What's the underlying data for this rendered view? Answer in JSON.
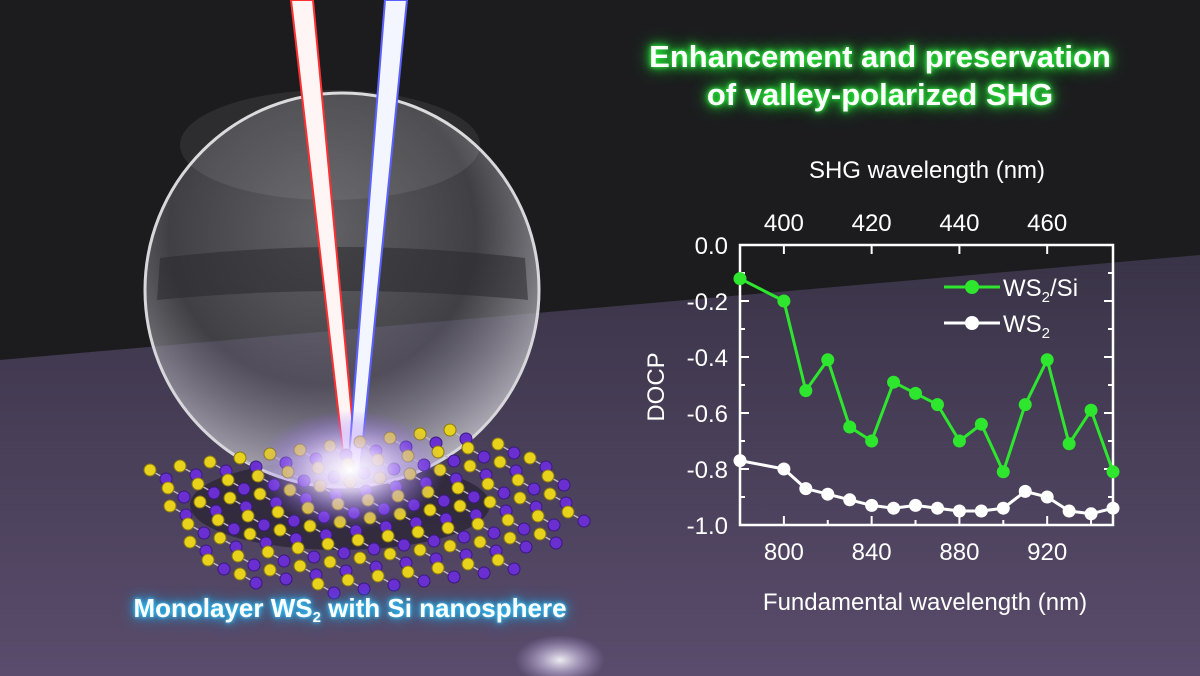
{
  "headline": {
    "line1": "Enhancement and preservation",
    "line2": "of valley-polarized SHG"
  },
  "caption": {
    "prefix": "Monolayer WS",
    "subscript": "2",
    "suffix": " with Si nanosphere"
  },
  "colors": {
    "background": "#1c1c1f",
    "series_ws2_si": "#2ee62e",
    "series_ws2": "#ffffff",
    "headline_glow": "#27ff3a",
    "caption_glow": "#24c8ff"
  },
  "chart_data": {
    "type": "line",
    "xlabel": "Fundamental wavelength (nm)",
    "ylabel": "DOCP",
    "top_xlabel": "SHG wavelength (nm)",
    "xlim": [
      780,
      950
    ],
    "ylim": [
      -1.0,
      0.0
    ],
    "xticks": [
      800,
      840,
      880,
      920
    ],
    "yticks": [
      0.0,
      -0.2,
      -0.4,
      -0.6,
      -0.8,
      -1.0
    ],
    "ytick_labels": [
      "0.0",
      "-0.2",
      "-0.4",
      "-0.6",
      "-0.8",
      "-1.0"
    ],
    "top_xticks": [
      400,
      420,
      440,
      460
    ],
    "legend_position": "top-right",
    "series": [
      {
        "name_main": "WS",
        "name_sub": "2",
        "name_suffix": "/Si",
        "color": "#2ee62e",
        "x": [
          780,
          800,
          810,
          820,
          830,
          840,
          850,
          860,
          870,
          880,
          890,
          900,
          910,
          920,
          930,
          940,
          950
        ],
        "y": [
          -0.12,
          -0.2,
          -0.52,
          -0.41,
          -0.65,
          -0.7,
          -0.49,
          -0.53,
          -0.57,
          -0.7,
          -0.64,
          -0.81,
          -0.57,
          -0.41,
          -0.71,
          -0.59,
          -0.81
        ]
      },
      {
        "name_main": "WS",
        "name_sub": "2",
        "name_suffix": "",
        "color": "#ffffff",
        "x": [
          780,
          800,
          810,
          820,
          830,
          840,
          850,
          860,
          870,
          880,
          890,
          900,
          910,
          920,
          930,
          940,
          950
        ],
        "y": [
          -0.77,
          -0.8,
          -0.87,
          -0.89,
          -0.91,
          -0.93,
          -0.94,
          -0.93,
          -0.94,
          -0.95,
          -0.95,
          -0.94,
          -0.88,
          -0.9,
          -0.95,
          -0.96,
          -0.94
        ]
      }
    ]
  }
}
